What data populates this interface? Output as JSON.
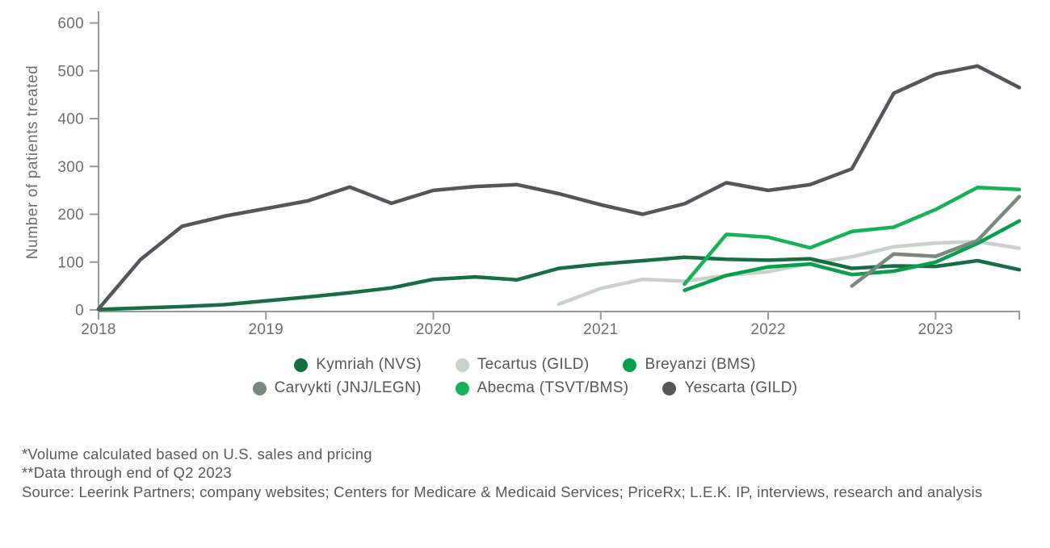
{
  "page": {
    "background": "#ffffff",
    "text_color": "#58595b",
    "axis_color": "#97999b",
    "tick_label_color": "#6d6e71"
  },
  "chart_data": {
    "type": "line",
    "title": "",
    "ylabel": "Number of patients treated",
    "xlabel": "",
    "ylim": [
      0,
      600
    ],
    "yticks": [
      0,
      100,
      200,
      300,
      400,
      500,
      600
    ],
    "x_unit": "quarter",
    "n_points": 23,
    "x_range_note": "quarterly points from 2018 through Q2 2023",
    "x_tick_labels": [
      "2018",
      "2019",
      "2020",
      "2021",
      "2022",
      "2023"
    ],
    "x_tick_indices": [
      0,
      4,
      8,
      12,
      16,
      20
    ],
    "grid": "off",
    "legend_position": "bottom",
    "series": [
      {
        "name": "Kymriah (NVS)",
        "color": "#176f41",
        "start_index": 0,
        "values": [
          1,
          4,
          7,
          11,
          19,
          27,
          36,
          46,
          64,
          69,
          63,
          87,
          96,
          103,
          110,
          106,
          104,
          107,
          87,
          92,
          91,
          103,
          84
        ]
      },
      {
        "name": "Tecartus (GILD)",
        "color": "#c8d2cb",
        "start_index": 11,
        "values": [
          12,
          45,
          64,
          60,
          72,
          80,
          97,
          111,
          132,
          140,
          143,
          129
        ]
      },
      {
        "name": "Breyanzi (BMS)",
        "color": "#089e4c",
        "start_index": 14,
        "values": [
          41,
          72,
          90,
          96,
          74,
          81,
          100,
          139,
          186
        ]
      },
      {
        "name": "Carvykti (JNJ/LEGN)",
        "color": "#78897e",
        "start_index": 18,
        "values": [
          50,
          117,
          112,
          145,
          237
        ]
      },
      {
        "name": "Abecma (TSVT/BMS)",
        "color": "#17b257",
        "start_index": 14,
        "values": [
          54,
          158,
          152,
          130,
          164,
          173,
          210,
          256,
          252
        ]
      },
      {
        "name": "Yescarta (GILD)",
        "color": "#53565a",
        "start_index": 0,
        "values": [
          2,
          105,
          175,
          196,
          212,
          228,
          257,
          223,
          250,
          258,
          262,
          243,
          220,
          200,
          222,
          266,
          250,
          262,
          295,
          453,
          493,
          510,
          465
        ]
      }
    ]
  },
  "footnotes": {
    "line1": "*Volume calculated based on U.S. sales and pricing",
    "line2": "**Data through end of Q2 2023",
    "source": "Source: Leerink Partners; company websites; Centers for Medicare & Medicaid Services; PriceRx; L.E.K. IP, interviews, research and analysis"
  }
}
